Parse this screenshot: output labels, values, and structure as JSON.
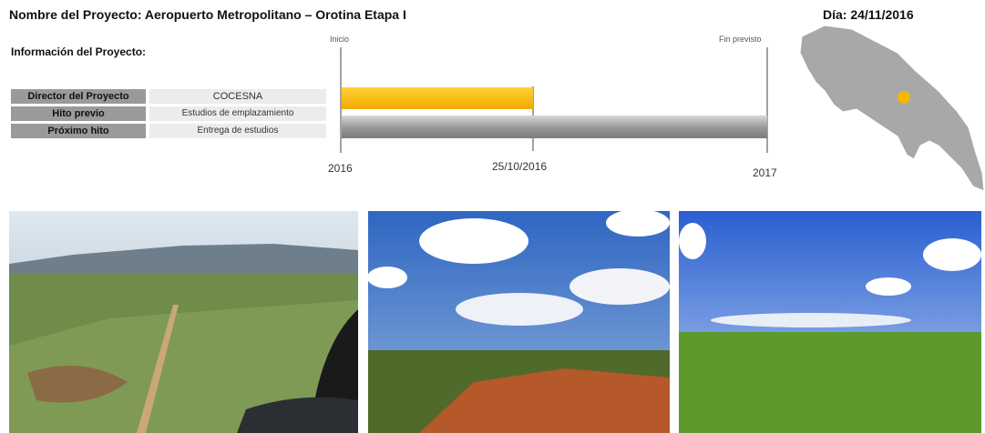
{
  "header": {
    "title": "Nombre del Proyecto: Aeropuerto Metropolitano – Orotina Etapa I",
    "date": "Día: 24/11/2016"
  },
  "info": {
    "heading": "Información del Proyecto:",
    "rows": [
      [
        "Director del Proyecto",
        "COCESNA"
      ],
      [
        "Hito previo",
        "Estudios de emplazamiento"
      ],
      [
        "Próximo hito",
        "Entrega de estudios"
      ]
    ]
  },
  "timeline": {
    "start_label": "Inicio",
    "end_label": "Fin previsto",
    "dates": [
      "2016",
      "25/10/2016",
      "2017"
    ]
  }
}
